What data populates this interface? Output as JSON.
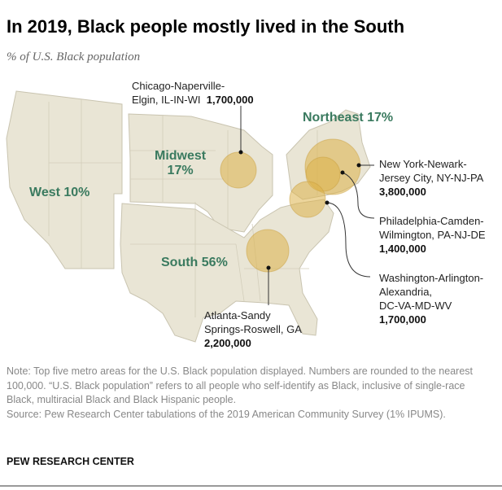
{
  "title": "In 2019, Black people mostly lived in the South",
  "subtitle": "% of U.S. Black population",
  "colors": {
    "land": "#e9e5d5",
    "border": "#c9c4b0",
    "bubble": "#ddb24a",
    "region_label": "#3a7a5f"
  },
  "regions": [
    {
      "name": "West",
      "share": "10%",
      "label": "West 10%"
    },
    {
      "name": "Midwest",
      "share": "17%",
      "label_line1": "Midwest",
      "label_line2": "17%"
    },
    {
      "name": "Northeast",
      "share": "17%",
      "label": "Northeast 17%"
    },
    {
      "name": "South",
      "share": "56%",
      "label": "South 56%"
    }
  ],
  "metros": [
    {
      "line1": "Chicago-Naperville-",
      "line2": "Elgin, IL-IN-WI",
      "value": "1,700,000"
    },
    {
      "line1": "New York-Newark-",
      "line2": "Jersey City, NY-NJ-PA",
      "value": "3,800,000"
    },
    {
      "line1": "Philadelphia-Camden-",
      "line2": "Wilmington, PA-NJ-DE",
      "value": "1,400,000"
    },
    {
      "line1": "Washington-Arlington-",
      "line2": "Alexandria,",
      "line3": "DC-VA-MD-WV",
      "value": "1,700,000"
    },
    {
      "line1": "Atlanta-Sandy",
      "line2": "Springs-Roswell, GA",
      "value": "2,200,000"
    }
  ],
  "note": "Note: Top five metro areas for the U.S. Black population displayed. Numbers are rounded to the nearest 100,000. “U.S. Black population” refers to all people who self-identify as Black, inclusive of single-race Black, multiracial Black and Black Hispanic people.",
  "source": "Source: Pew Research Center tabulations of the 2019 American Community Survey (1% IPUMS).",
  "brand": "PEW RESEARCH CENTER"
}
